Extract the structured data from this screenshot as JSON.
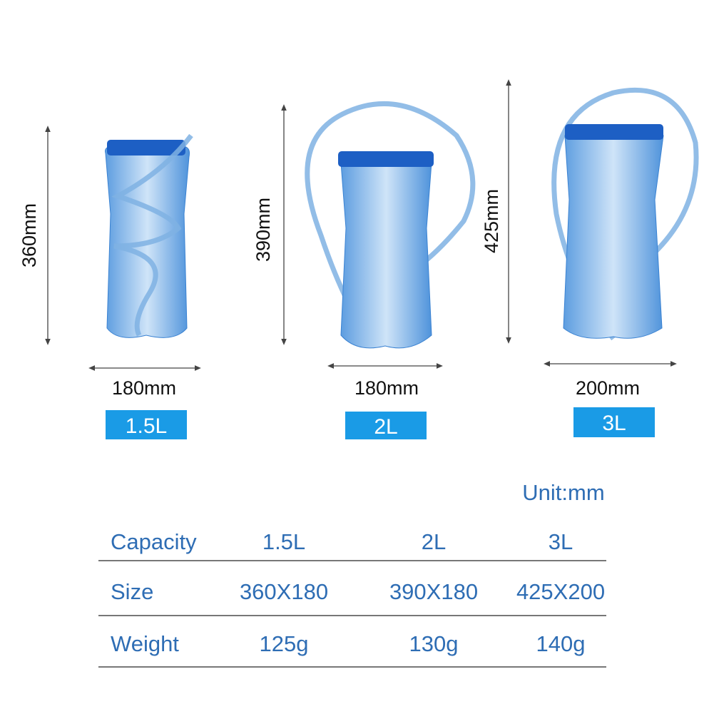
{
  "products": [
    {
      "height_label": "360mm",
      "width_label": "180mm",
      "capacity": "1.5L"
    },
    {
      "height_label": "390mm",
      "width_label": "180mm",
      "capacity": "2L"
    },
    {
      "height_label": "425mm",
      "width_label": "200mm",
      "capacity": "3L"
    }
  ],
  "table": {
    "unit": "Unit:mm",
    "rows": [
      [
        "Capacity",
        "1.5L",
        "2L",
        "3L"
      ],
      [
        "Size",
        "360X180",
        "390X180",
        "425X200"
      ],
      [
        "Weight",
        "125g",
        "130g",
        "140g"
      ]
    ]
  }
}
